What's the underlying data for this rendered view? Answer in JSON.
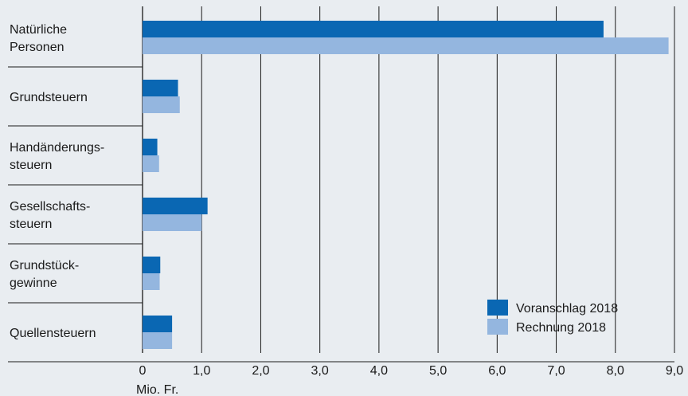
{
  "chart_data": {
    "type": "bar",
    "orientation": "horizontal",
    "categories": [
      [
        "Natürliche",
        "Personen"
      ],
      [
        "Grundsteuern"
      ],
      [
        "Handänderungs-",
        "steuern"
      ],
      [
        "Gesellschafts-",
        "steuern"
      ],
      [
        "Grundstück-",
        "gewinne"
      ],
      [
        "Quellensteuern"
      ]
    ],
    "series": [
      {
        "name": "Voranschlag 2018",
        "color": "#0a67b3",
        "values": [
          7.8,
          0.6,
          0.25,
          1.1,
          0.3,
          0.5
        ]
      },
      {
        "name": "Rechnung 2018",
        "color": "#94b6df",
        "values": [
          8.9,
          0.63,
          0.28,
          1.0,
          0.29,
          0.5
        ]
      }
    ],
    "xticks": [
      "0",
      "1,0",
      "2,0",
      "3,0",
      "4,0",
      "5,0",
      "6,0",
      "7,0",
      "8,0",
      "9,0"
    ],
    "xlim": [
      0,
      9
    ],
    "xlabel": "Mio. Fr.",
    "grid": "vertical",
    "legend_position": "bottom-right"
  }
}
